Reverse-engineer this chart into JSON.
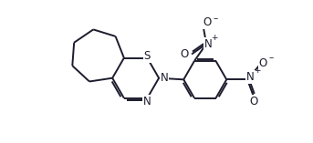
{
  "line_color": "#1c1c2e",
  "bg_color": "#ffffff",
  "bond_lw": 1.4,
  "font_size": 8.5,
  "fig_w": 3.43,
  "fig_h": 1.57,
  "xlim": [
    0,
    10.5
  ],
  "ylim": [
    0,
    4.8
  ]
}
